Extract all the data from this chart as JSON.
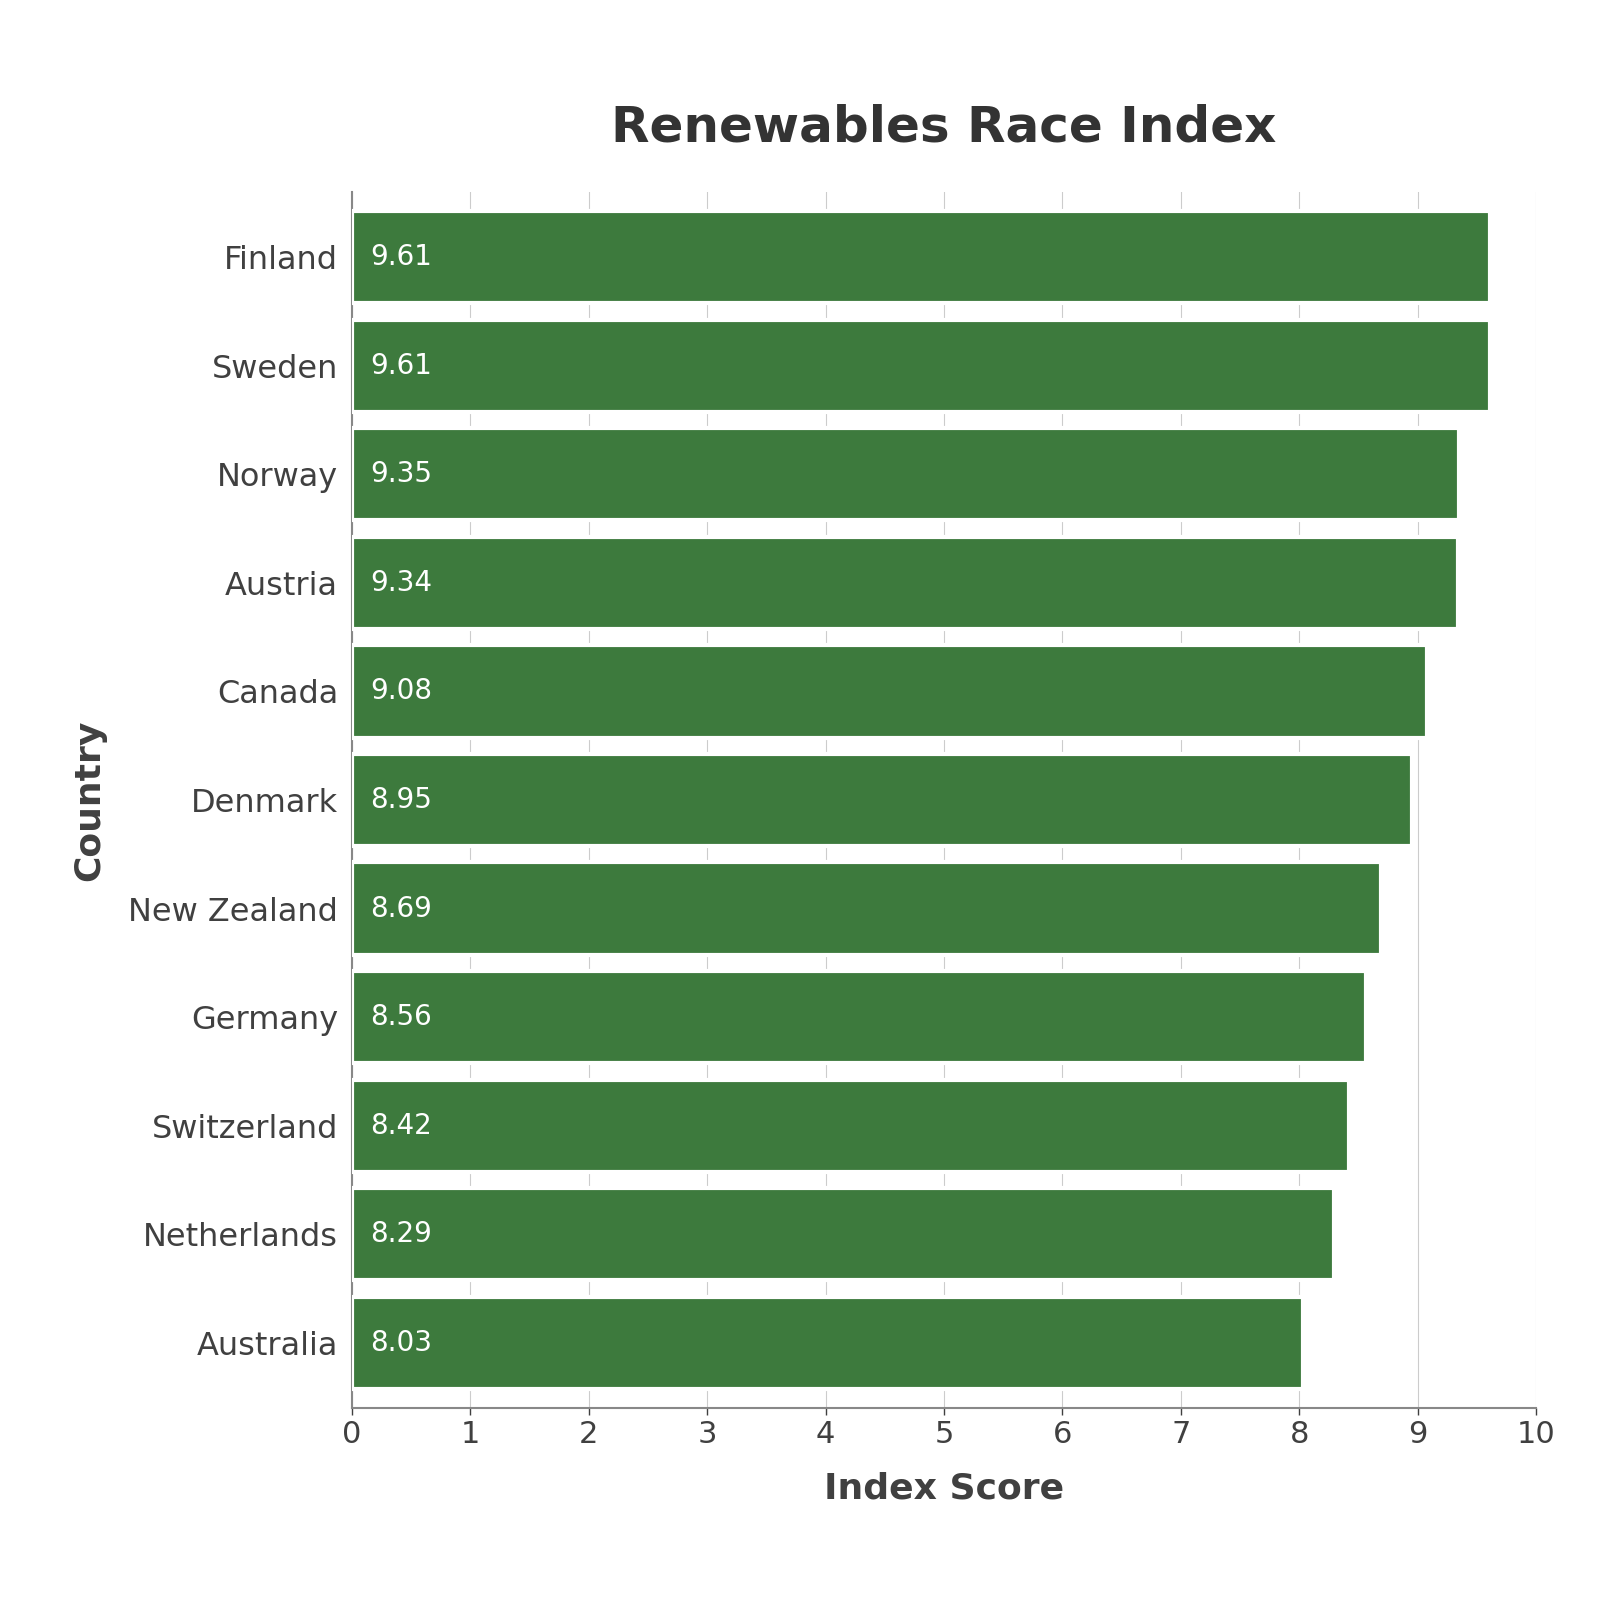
{
  "title": "Renewables Race Index",
  "xlabel": "Index Score",
  "ylabel": "Country",
  "countries": [
    "Australia",
    "Netherlands",
    "Switzerland",
    "Germany",
    "New Zealand",
    "Denmark",
    "Canada",
    "Austria",
    "Norway",
    "Sweden",
    "Finland"
  ],
  "scores": [
    8.03,
    8.29,
    8.42,
    8.56,
    8.69,
    8.95,
    9.08,
    9.34,
    9.35,
    9.61,
    9.61
  ],
  "bar_color": "#3d7a3d",
  "label_color": "#ffffff",
  "title_color": "#333333",
  "axis_label_color": "#404040",
  "tick_color": "#404040",
  "background_color": "#ffffff",
  "xlim": [
    0,
    10
  ],
  "xticks": [
    0,
    1,
    2,
    3,
    4,
    5,
    6,
    7,
    8,
    9,
    10
  ],
  "title_fontsize": 36,
  "axis_label_fontsize": 26,
  "tick_fontsize": 22,
  "bar_label_fontsize": 20,
  "country_label_fontsize": 23,
  "bar_height": 0.85
}
